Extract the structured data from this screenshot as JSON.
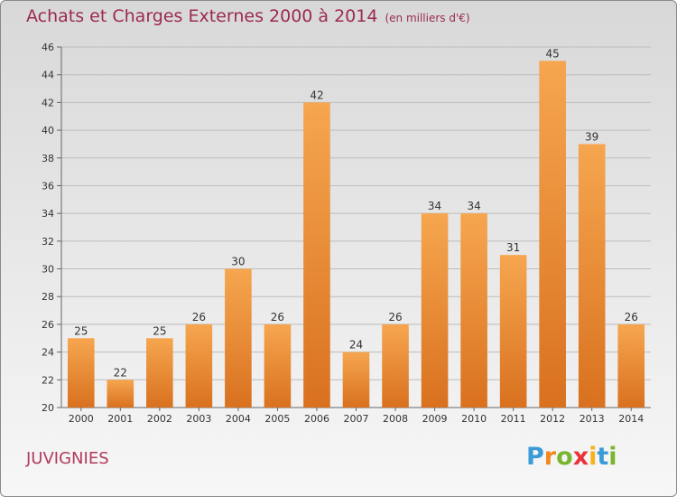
{
  "header": {
    "title": "Achats et Charges Externes 2000 à 2014",
    "subtitle": "(en milliers d'€)"
  },
  "footer": {
    "commune": "JUVIGNIES",
    "logo": [
      "P",
      "r",
      "o",
      "x",
      "i",
      "t",
      "i"
    ]
  },
  "colors": {
    "title": "#9b2a4f",
    "bar_top": "#f6a64f",
    "bar_bottom": "#d9711f",
    "logo": [
      "#3a9bd8",
      "#f08a1e",
      "#7ab530",
      "#e8333a",
      "#f6b21b",
      "#3a9bd8",
      "#7ab530"
    ]
  },
  "chart_data": {
    "type": "bar",
    "title": "Achats et Charges Externes 2000 à 2014",
    "subtitle": "(en milliers d'€)",
    "categories": [
      "2000",
      "2001",
      "2002",
      "2003",
      "2004",
      "2005",
      "2006",
      "2007",
      "2008",
      "2009",
      "2010",
      "2011",
      "2012",
      "2013",
      "2014"
    ],
    "values": [
      25,
      22,
      25,
      26,
      30,
      26,
      42,
      24,
      26,
      34,
      34,
      31,
      45,
      39,
      26
    ],
    "ylim": [
      20,
      46
    ],
    "yticks": [
      20,
      22,
      24,
      26,
      28,
      30,
      32,
      34,
      36,
      38,
      40,
      42,
      44,
      46
    ],
    "grid": true,
    "data_labels": true
  }
}
